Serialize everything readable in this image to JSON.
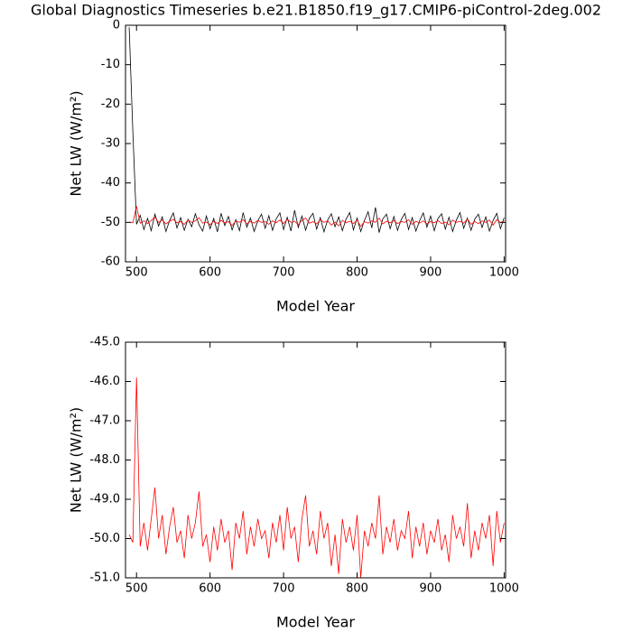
{
  "title": "Global Diagnostics Timeseries b.e21.B1850.f19_g17.CMIP6-piControl-2deg.002",
  "chart_data": [
    {
      "type": "line",
      "xlabel": "Model Year",
      "ylabel": "Net LW (W/m²)",
      "xlim": [
        485,
        1002
      ],
      "xticks": [
        500,
        600,
        700,
        800,
        900,
        1000
      ],
      "ylim": [
        -60,
        0
      ],
      "yticks": [
        -60,
        -50,
        -40,
        -30,
        -20,
        -10,
        0
      ],
      "x": [
        490,
        495,
        500,
        505,
        510,
        515,
        520,
        525,
        530,
        535,
        540,
        545,
        550,
        555,
        560,
        565,
        570,
        575,
        580,
        585,
        590,
        595,
        600,
        605,
        610,
        615,
        620,
        625,
        630,
        635,
        640,
        645,
        650,
        655,
        660,
        665,
        670,
        675,
        680,
        685,
        690,
        695,
        700,
        705,
        710,
        715,
        720,
        725,
        730,
        735,
        740,
        745,
        750,
        755,
        760,
        765,
        770,
        775,
        780,
        785,
        790,
        795,
        800,
        805,
        810,
        815,
        820,
        825,
        830,
        835,
        840,
        845,
        850,
        855,
        860,
        865,
        870,
        875,
        880,
        885,
        890,
        895,
        900,
        905,
        910,
        915,
        920,
        925,
        930,
        935,
        940,
        945,
        950,
        955,
        960,
        965,
        970,
        975,
        980,
        985,
        990,
        995,
        1000
      ],
      "series": [
        {
          "color": "#000000",
          "values": [
            -0.5,
            -27,
            -50.5,
            -48.2,
            -51.8,
            -49.0,
            -52.1,
            -47.9,
            -50.9,
            -48.6,
            -52.3,
            -49.5,
            -47.6,
            -51.4,
            -48.8,
            -52.0,
            -49.2,
            -51.1,
            -47.8,
            -50.6,
            -52.2,
            -48.4,
            -51.6,
            -49.0,
            -52.4,
            -47.7,
            -50.8,
            -48.5,
            -51.9,
            -49.3,
            -52.1,
            -47.5,
            -51.2,
            -48.9,
            -52.3,
            -49.6,
            -47.9,
            -51.5,
            -48.3,
            -52.0,
            -49.1,
            -47.6,
            -51.8,
            -48.7,
            -52.2,
            -46.9,
            -51.3,
            -48.4,
            -52.0,
            -49.0,
            -47.7,
            -51.7,
            -48.8,
            -52.4,
            -49.4,
            -47.8,
            -51.1,
            -48.6,
            -52.1,
            -49.2,
            -47.5,
            -51.9,
            -48.9,
            -52.3,
            -49.5,
            -47.3,
            -51.4,
            -46.2,
            -52.6,
            -49.1,
            -47.9,
            -51.6,
            -48.5,
            -52.0,
            -49.3,
            -47.7,
            -51.8,
            -48.8,
            -52.2,
            -49.6,
            -47.6,
            -51.2,
            -48.4,
            -52.1,
            -49.0,
            -47.8,
            -51.7,
            -48.7,
            -52.3,
            -49.4,
            -47.5,
            -51.5,
            -48.9,
            -52.0,
            -49.2,
            -47.9,
            -51.3,
            -48.6,
            -52.2,
            -49.5,
            -47.7,
            -51.6,
            -48.8
          ]
        },
        {
          "color": "#ff0000",
          "values": [
            -49.9,
            -50.1,
            -45.9,
            -50.2,
            -49.6,
            -50.3,
            -49.5,
            -48.7,
            -50.0,
            -49.4,
            -50.4,
            -49.7,
            -49.2,
            -50.1,
            -49.8,
            -50.5,
            -49.4,
            -50.0,
            -49.6,
            -48.8,
            -50.2,
            -49.9,
            -50.6,
            -49.7,
            -50.3,
            -49.5,
            -50.1,
            -49.8,
            -50.8,
            -49.6,
            -50.0,
            -49.3,
            -50.4,
            -49.7,
            -50.2,
            -49.5,
            -50.0,
            -49.8,
            -50.5,
            -49.6,
            -50.1,
            -49.4,
            -50.3,
            -49.2,
            -50.0,
            -49.7,
            -50.6,
            -49.5,
            -48.9,
            -50.2,
            -49.8,
            -50.4,
            -49.3,
            -50.0,
            -49.6,
            -50.7,
            -49.9,
            -50.9,
            -49.5,
            -50.1,
            -49.7,
            -50.3,
            -49.4,
            -51.0,
            -49.8,
            -50.2,
            -49.6,
            -50.0,
            -48.9,
            -50.4,
            -49.7,
            -50.1,
            -49.5,
            -50.3,
            -49.8,
            -50.0,
            -49.3,
            -50.5,
            -49.7,
            -50.2,
            -49.6,
            -50.4,
            -49.8,
            -50.1,
            -49.5,
            -50.3,
            -49.9,
            -50.6,
            -49.4,
            -50.0,
            -49.7,
            -50.2,
            -49.1,
            -50.5,
            -49.8,
            -50.3,
            -49.6,
            -50.0,
            -49.4,
            -50.7,
            -49.3,
            -50.1,
            -49.6
          ]
        }
      ]
    },
    {
      "type": "line",
      "xlabel": "Model Year",
      "ylabel": "Net LW (W/m²)",
      "xlim": [
        485,
        1002
      ],
      "xticks": [
        500,
        600,
        700,
        800,
        900,
        1000
      ],
      "ylim": [
        -51,
        -45
      ],
      "yticks": [
        {
          "value": -51,
          "label": "-51.0"
        },
        {
          "value": -50,
          "label": "-50.0"
        },
        {
          "value": -49,
          "label": "-49.0"
        },
        {
          "value": -48,
          "label": "-48.0"
        },
        {
          "value": -47,
          "label": "-47.0"
        },
        {
          "value": -46,
          "label": "-46.0"
        },
        {
          "value": -45,
          "label": "-45.0"
        }
      ],
      "x": [
        490,
        495,
        500,
        505,
        510,
        515,
        520,
        525,
        530,
        535,
        540,
        545,
        550,
        555,
        560,
        565,
        570,
        575,
        580,
        585,
        590,
        595,
        600,
        605,
        610,
        615,
        620,
        625,
        630,
        635,
        640,
        645,
        650,
        655,
        660,
        665,
        670,
        675,
        680,
        685,
        690,
        695,
        700,
        705,
        710,
        715,
        720,
        725,
        730,
        735,
        740,
        745,
        750,
        755,
        760,
        765,
        770,
        775,
        780,
        785,
        790,
        795,
        800,
        805,
        810,
        815,
        820,
        825,
        830,
        835,
        840,
        845,
        850,
        855,
        860,
        865,
        870,
        875,
        880,
        885,
        890,
        895,
        900,
        905,
        910,
        915,
        920,
        925,
        930,
        935,
        940,
        945,
        950,
        955,
        960,
        965,
        970,
        975,
        980,
        985,
        990,
        995,
        1000
      ],
      "series": [
        {
          "color": "#ff0000",
          "values": [
            -49.9,
            -50.1,
            -45.9,
            -50.2,
            -49.6,
            -50.3,
            -49.5,
            -48.7,
            -50.0,
            -49.4,
            -50.4,
            -49.7,
            -49.2,
            -50.1,
            -49.8,
            -50.5,
            -49.4,
            -50.0,
            -49.6,
            -48.8,
            -50.2,
            -49.9,
            -50.6,
            -49.7,
            -50.3,
            -49.5,
            -50.1,
            -49.8,
            -50.8,
            -49.6,
            -50.0,
            -49.3,
            -50.4,
            -49.7,
            -50.2,
            -49.5,
            -50.0,
            -49.8,
            -50.5,
            -49.6,
            -50.1,
            -49.4,
            -50.3,
            -49.2,
            -50.0,
            -49.7,
            -50.6,
            -49.5,
            -48.9,
            -50.2,
            -49.8,
            -50.4,
            -49.3,
            -50.0,
            -49.6,
            -50.7,
            -49.9,
            -50.9,
            -49.5,
            -50.1,
            -49.7,
            -50.3,
            -49.4,
            -51.0,
            -49.8,
            -50.2,
            -49.6,
            -50.0,
            -48.9,
            -50.4,
            -49.7,
            -50.1,
            -49.5,
            -50.3,
            -49.8,
            -50.0,
            -49.3,
            -50.5,
            -49.7,
            -50.2,
            -49.6,
            -50.4,
            -49.8,
            -50.1,
            -49.5,
            -50.3,
            -49.9,
            -50.6,
            -49.4,
            -50.0,
            -49.7,
            -50.2,
            -49.1,
            -50.5,
            -49.8,
            -50.3,
            -49.6,
            -50.0,
            -49.4,
            -50.7,
            -49.3,
            -50.1,
            -49.6
          ]
        }
      ]
    }
  ]
}
